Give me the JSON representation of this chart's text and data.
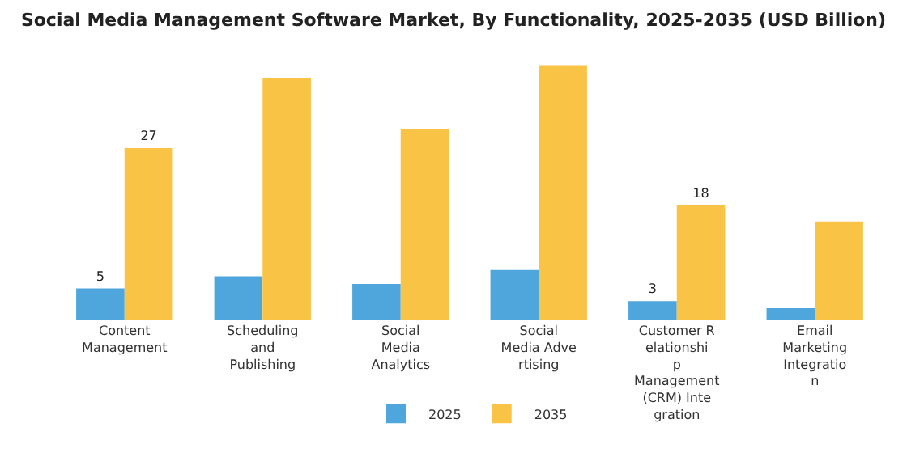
{
  "chart_data": {
    "type": "bar",
    "title": "Social Media Management Software Market, By Functionality, 2025-2035 (USD Billion)",
    "categories": [
      "Content Management",
      "Scheduling and Publishing",
      "Social Media Analytics",
      "Social Media Advertising",
      "Customer Relationship Management (CRM) Integration",
      "Email Marketing Integration"
    ],
    "series": [
      {
        "name": "2025",
        "color": "#4ea6dc",
        "values": [
          5,
          6.9,
          5.7,
          7.9,
          3,
          1.9
        ],
        "value_labels": [
          "5",
          null,
          null,
          null,
          "3",
          null
        ]
      },
      {
        "name": "2035",
        "color": "#f9c446",
        "values": [
          27,
          38,
          30,
          40,
          18,
          15.5
        ],
        "value_labels": [
          "27",
          null,
          null,
          null,
          "18",
          null
        ]
      }
    ],
    "legend": "bottom",
    "grid": false,
    "tick_labels": "x"
  }
}
